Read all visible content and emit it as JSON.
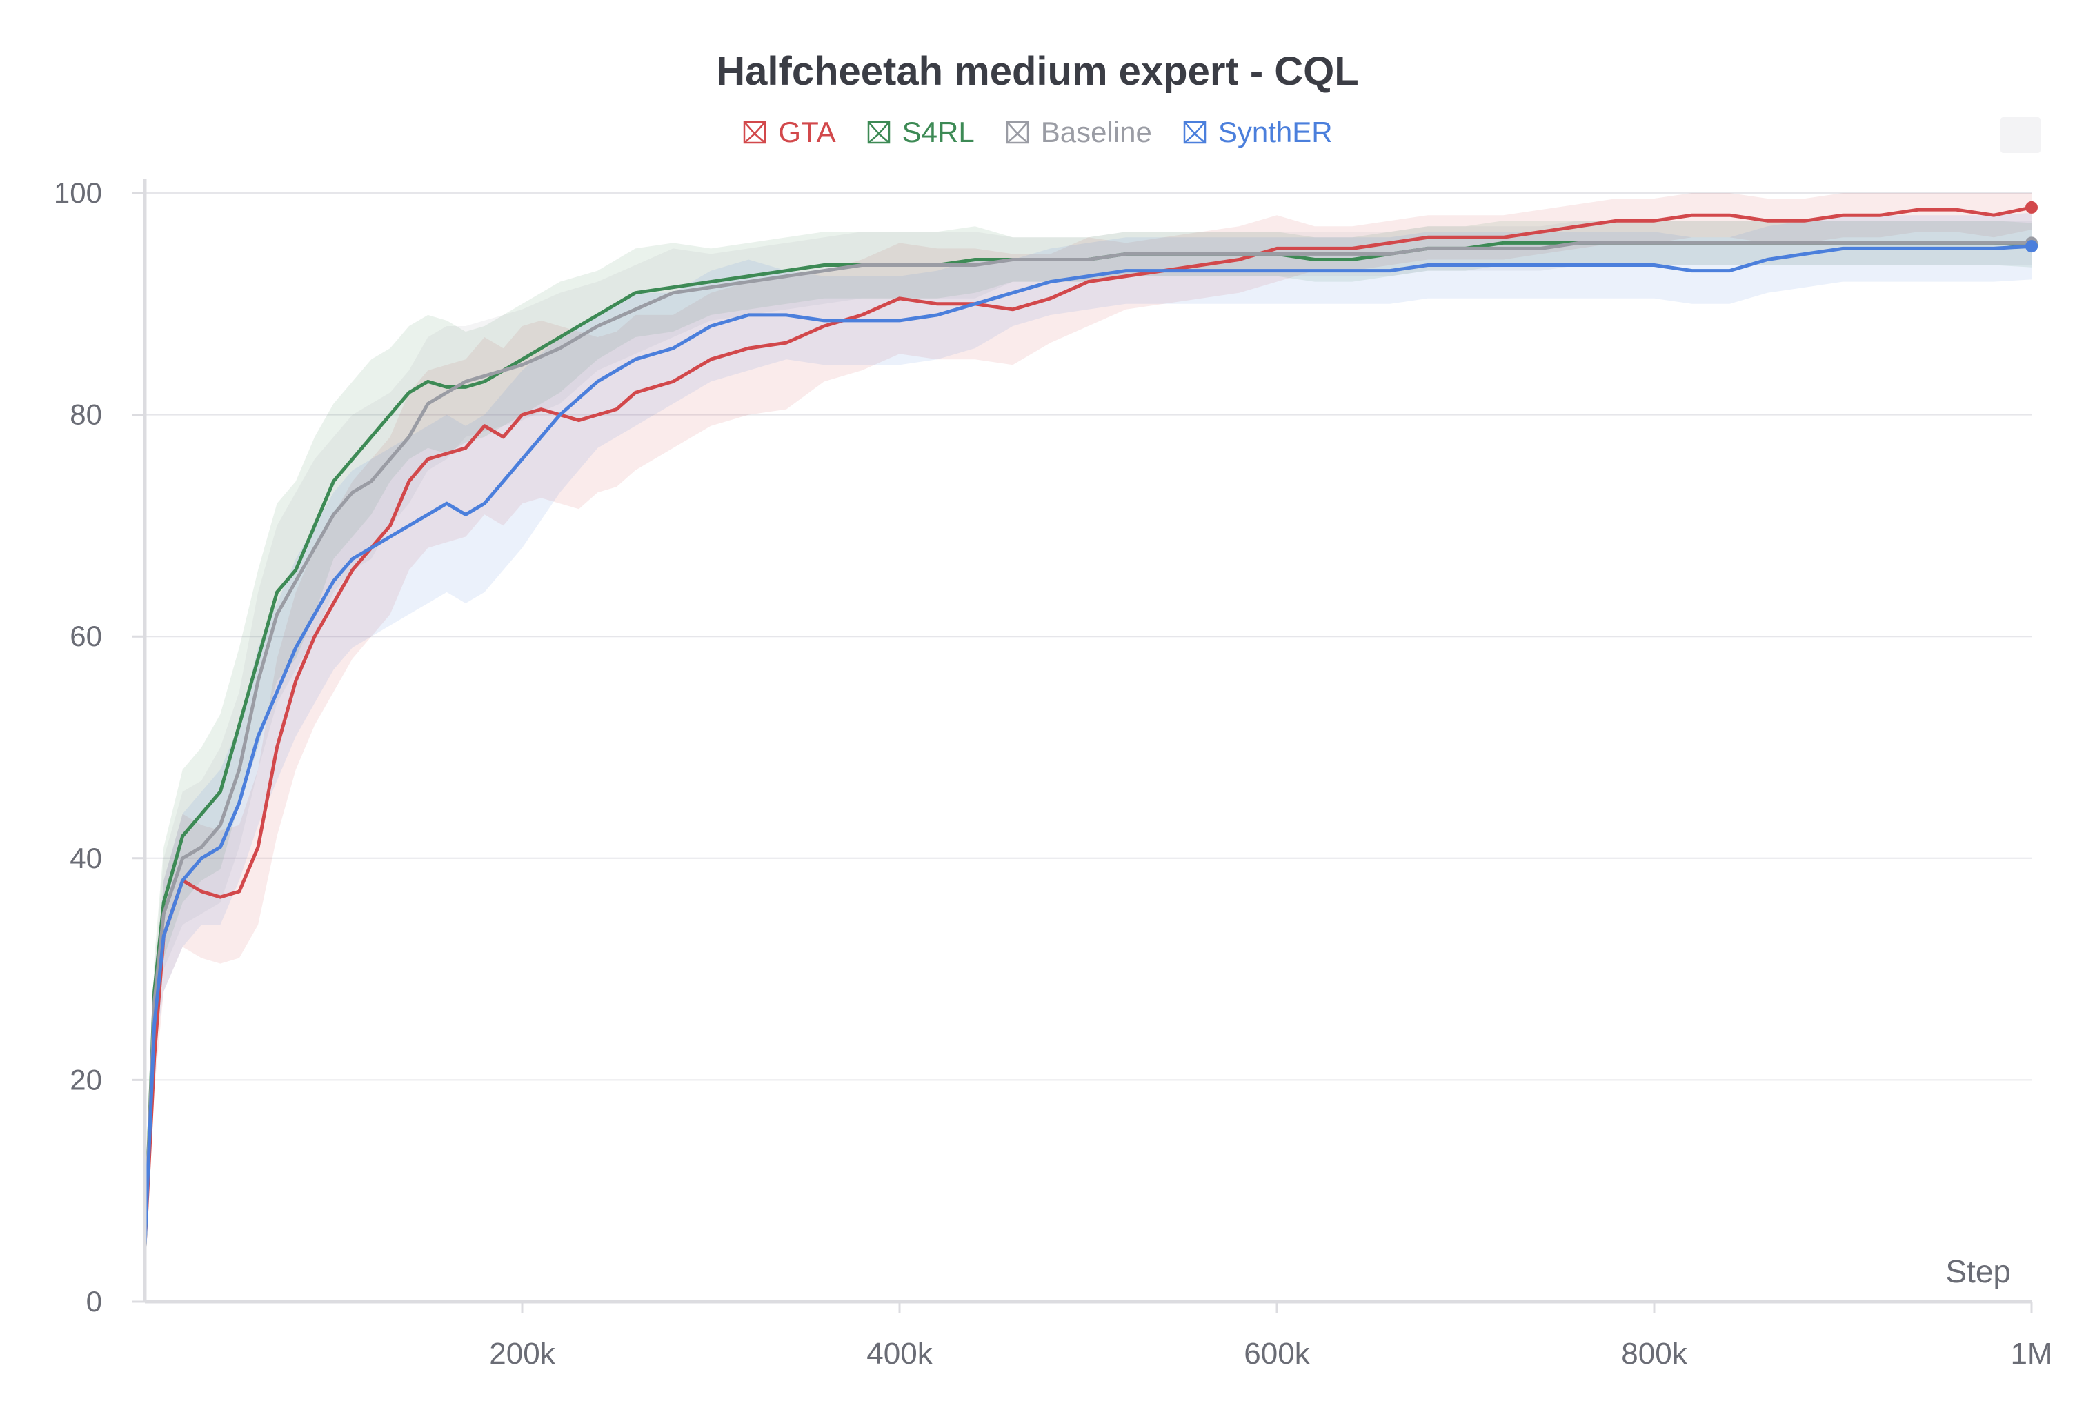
{
  "chart_data": {
    "type": "line",
    "title": "Halfcheetah medium expert - CQL",
    "xlabel": "Step",
    "ylabel": "",
    "xlim": [
      0,
      1000000
    ],
    "ylim": [
      0,
      100
    ],
    "xticks": [
      {
        "value": 200000,
        "label": "200k"
      },
      {
        "value": 400000,
        "label": "400k"
      },
      {
        "value": 600000,
        "label": "600k"
      },
      {
        "value": 800000,
        "label": "800k"
      },
      {
        "value": 1000000,
        "label": "1M"
      }
    ],
    "yticks": [
      0,
      20,
      40,
      60,
      80,
      100
    ],
    "grid": "horizontal",
    "legend": "top-center",
    "series": [
      {
        "name": "GTA",
        "color": "#d2484b",
        "x": [
          0,
          5000,
          10000,
          20000,
          30000,
          40000,
          50000,
          60000,
          70000,
          80000,
          90000,
          100000,
          110000,
          120000,
          130000,
          140000,
          150000,
          160000,
          170000,
          180000,
          190000,
          200000,
          210000,
          220000,
          230000,
          240000,
          250000,
          260000,
          280000,
          300000,
          320000,
          340000,
          360000,
          380000,
          400000,
          420000,
          440000,
          460000,
          480000,
          500000,
          520000,
          540000,
          560000,
          580000,
          600000,
          620000,
          640000,
          660000,
          680000,
          700000,
          720000,
          740000,
          760000,
          780000,
          800000,
          820000,
          840000,
          860000,
          880000,
          900000,
          920000,
          940000,
          960000,
          980000,
          1000000
        ],
        "y": [
          5,
          22,
          33,
          38,
          37,
          36.5,
          37,
          41,
          50,
          56,
          60,
          63,
          66,
          68,
          70,
          74,
          76,
          76.5,
          77,
          79,
          78,
          80,
          80.5,
          80,
          79.5,
          80,
          80.5,
          82,
          83,
          85,
          86,
          86.5,
          88,
          89,
          90.5,
          90,
          90,
          89.5,
          90.5,
          92,
          92.5,
          93,
          93.5,
          94,
          95,
          95,
          95,
          95.5,
          96,
          96,
          96,
          96.5,
          97,
          97.5,
          97.5,
          98,
          98,
          97.5,
          97.5,
          98,
          98,
          98.5,
          98.5,
          98,
          98.7
        ],
        "band": [
          0,
          3,
          5,
          6,
          6,
          6,
          6,
          7,
          8,
          8,
          8,
          8,
          8,
          8,
          8,
          8,
          8,
          8,
          8,
          8,
          8,
          8,
          8,
          8,
          8,
          7,
          7,
          7,
          6,
          6,
          6,
          6,
          5,
          5,
          5,
          5,
          5,
          5,
          4,
          4,
          3,
          3,
          3,
          3,
          3,
          2,
          2,
          2,
          2,
          2,
          2,
          2,
          2,
          2,
          2,
          2,
          2,
          2,
          2,
          2,
          2,
          2,
          2,
          2,
          2
        ]
      },
      {
        "name": "S4RL",
        "color": "#3d8a55",
        "x": [
          0,
          5000,
          10000,
          20000,
          30000,
          40000,
          50000,
          60000,
          70000,
          80000,
          90000,
          100000,
          110000,
          120000,
          130000,
          140000,
          150000,
          160000,
          170000,
          180000,
          190000,
          200000,
          220000,
          240000,
          260000,
          280000,
          300000,
          320000,
          340000,
          360000,
          380000,
          400000,
          420000,
          440000,
          460000,
          480000,
          500000,
          520000,
          540000,
          560000,
          580000,
          600000,
          620000,
          640000,
          660000,
          680000,
          700000,
          720000,
          740000,
          760000,
          780000,
          800000,
          820000,
          840000,
          860000,
          880000,
          900000,
          920000,
          940000,
          960000,
          980000,
          1000000
        ],
        "y": [
          5,
          28,
          36,
          42,
          44,
          46,
          52,
          58,
          64,
          66,
          70,
          74,
          76,
          78,
          80,
          82,
          83,
          82.5,
          82.5,
          83,
          84,
          85,
          87,
          89,
          91,
          91.5,
          92,
          92.5,
          93,
          93.5,
          93.5,
          93.5,
          93.5,
          94,
          94,
          94,
          94,
          94.5,
          94.5,
          94.5,
          94.5,
          94.5,
          94,
          94,
          94.5,
          95,
          95,
          95.5,
          95.5,
          95.5,
          95.5,
          95.5,
          95.5,
          95.5,
          95.5,
          95.5,
          95.5,
          95.5,
          95.5,
          95.5,
          95.5,
          95.3
        ],
        "band": [
          0,
          3,
          5,
          6,
          6,
          7,
          7,
          8,
          8,
          8,
          8,
          7,
          7,
          7,
          6,
          6,
          6,
          6,
          5,
          5,
          5,
          5,
          5,
          4,
          4,
          4,
          3,
          3,
          3,
          3,
          3,
          3,
          3,
          3,
          2,
          2,
          2,
          2,
          2,
          2,
          2,
          2,
          2,
          2,
          2,
          2,
          2,
          2,
          2,
          2,
          2,
          2,
          2,
          2,
          2,
          2,
          2,
          2,
          2,
          2,
          2,
          2
        ]
      },
      {
        "name": "Baseline",
        "color": "#9a9ca4",
        "x": [
          0,
          5000,
          10000,
          20000,
          30000,
          40000,
          50000,
          60000,
          70000,
          80000,
          90000,
          100000,
          110000,
          120000,
          130000,
          140000,
          150000,
          160000,
          170000,
          180000,
          190000,
          200000,
          220000,
          240000,
          260000,
          280000,
          300000,
          320000,
          340000,
          360000,
          380000,
          400000,
          420000,
          440000,
          460000,
          480000,
          500000,
          520000,
          540000,
          560000,
          580000,
          600000,
          620000,
          640000,
          660000,
          680000,
          700000,
          720000,
          740000,
          760000,
          780000,
          800000,
          820000,
          840000,
          860000,
          880000,
          900000,
          920000,
          940000,
          960000,
          980000,
          1000000
        ],
        "y": [
          5,
          27,
          35,
          40,
          41,
          43,
          48,
          56,
          62,
          65,
          68,
          71,
          73,
          74,
          76,
          78,
          81,
          82,
          83,
          83.5,
          84,
          84.5,
          86,
          88,
          89.5,
          91,
          91.5,
          92,
          92.5,
          93,
          93.5,
          93.5,
          93.5,
          93.5,
          94,
          94,
          94,
          94.5,
          94.5,
          94.5,
          94.5,
          94.5,
          94.5,
          94.5,
          94.5,
          95,
          95,
          95,
          95,
          95.5,
          95.5,
          95.5,
          95.5,
          95.5,
          95.5,
          95.5,
          95.5,
          95.5,
          95.5,
          95.5,
          95.5,
          95.5
        ],
        "band": [
          0,
          3,
          5,
          6,
          6,
          7,
          7,
          8,
          8,
          8,
          8,
          7,
          7,
          7,
          6,
          6,
          6,
          6,
          5,
          5,
          5,
          5,
          5,
          4,
          4,
          4,
          3,
          3,
          3,
          3,
          3,
          3,
          3,
          3,
          2,
          2,
          2,
          2,
          2,
          2,
          2,
          2,
          2,
          2,
          2,
          2,
          2,
          2,
          2,
          2,
          2,
          2,
          2,
          2,
          2,
          2,
          2,
          2,
          2,
          2,
          2,
          2
        ]
      },
      {
        "name": "SynthER",
        "color": "#4b7fdc",
        "x": [
          0,
          5000,
          10000,
          20000,
          30000,
          40000,
          50000,
          60000,
          70000,
          80000,
          90000,
          100000,
          110000,
          120000,
          130000,
          140000,
          150000,
          160000,
          170000,
          180000,
          190000,
          200000,
          220000,
          240000,
          260000,
          280000,
          300000,
          320000,
          340000,
          360000,
          380000,
          400000,
          420000,
          440000,
          460000,
          480000,
          500000,
          520000,
          540000,
          560000,
          580000,
          600000,
          620000,
          640000,
          660000,
          680000,
          700000,
          720000,
          740000,
          760000,
          780000,
          800000,
          820000,
          840000,
          860000,
          880000,
          900000,
          920000,
          940000,
          960000,
          980000,
          1000000
        ],
        "y": [
          5,
          25,
          33,
          38,
          40,
          41,
          45,
          51,
          55,
          59,
          62,
          65,
          67,
          68,
          69,
          70,
          71,
          72,
          71,
          72,
          74,
          76,
          80,
          83,
          85,
          86,
          88,
          89,
          89,
          88.5,
          88.5,
          88.5,
          89,
          90,
          91,
          92,
          92.5,
          93,
          93,
          93,
          93,
          93,
          93,
          93,
          93,
          93.5,
          93.5,
          93.5,
          93.5,
          93.5,
          93.5,
          93.5,
          93,
          93,
          94,
          94.5,
          95,
          95,
          95,
          95,
          95,
          95.2
        ],
        "band": [
          0,
          3,
          5,
          6,
          6,
          7,
          7,
          8,
          8,
          8,
          8,
          8,
          8,
          8,
          8,
          8,
          8,
          8,
          8,
          8,
          8,
          8,
          7,
          6,
          6,
          5,
          5,
          5,
          4,
          4,
          4,
          4,
          4,
          4,
          3,
          3,
          3,
          3,
          3,
          3,
          3,
          3,
          3,
          3,
          3,
          3,
          3,
          3,
          3,
          3,
          3,
          3,
          3,
          3,
          3,
          3,
          3,
          3,
          3,
          3,
          3,
          3
        ]
      }
    ]
  }
}
